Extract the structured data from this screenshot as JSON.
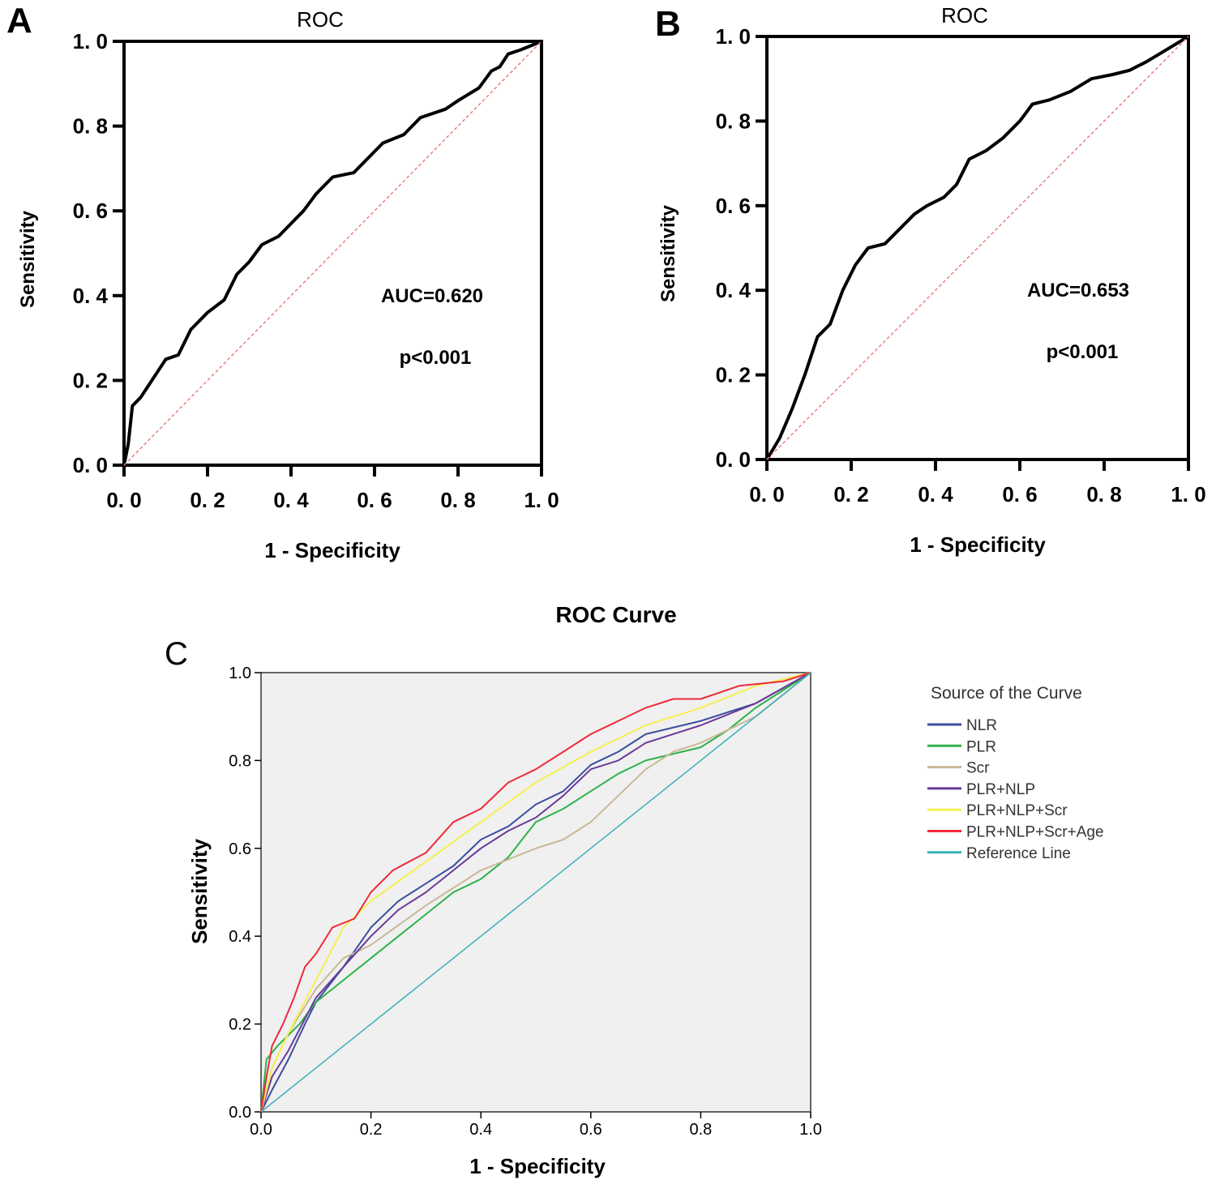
{
  "chart_data": [
    {
      "panel": "A",
      "type": "line",
      "title": "ROC",
      "xlabel": "1 - Specificity",
      "ylabel": "Sensitivity",
      "xlim": [
        0,
        1
      ],
      "ylim": [
        0,
        1
      ],
      "xticks": [
        "0. 0",
        "0. 2",
        "0. 4",
        "0. 6",
        "0. 8",
        "1. 0"
      ],
      "yticks": [
        "0. 0",
        "0. 2",
        "0. 4",
        "0. 6",
        "0. 8",
        "1. 0"
      ],
      "annotations": [
        "AUC=0.620",
        "p<0.001"
      ],
      "series": [
        {
          "name": "ROC",
          "color": "#000000",
          "points": [
            [
              0,
              0
            ],
            [
              0.01,
              0.05
            ],
            [
              0.02,
              0.14
            ],
            [
              0.04,
              0.16
            ],
            [
              0.06,
              0.19
            ],
            [
              0.1,
              0.25
            ],
            [
              0.13,
              0.26
            ],
            [
              0.16,
              0.32
            ],
            [
              0.2,
              0.36
            ],
            [
              0.24,
              0.39
            ],
            [
              0.27,
              0.45
            ],
            [
              0.3,
              0.48
            ],
            [
              0.33,
              0.52
            ],
            [
              0.37,
              0.54
            ],
            [
              0.4,
              0.57
            ],
            [
              0.43,
              0.6
            ],
            [
              0.46,
              0.64
            ],
            [
              0.5,
              0.68
            ],
            [
              0.55,
              0.69
            ],
            [
              0.6,
              0.74
            ],
            [
              0.62,
              0.76
            ],
            [
              0.67,
              0.78
            ],
            [
              0.71,
              0.82
            ],
            [
              0.77,
              0.84
            ],
            [
              0.8,
              0.86
            ],
            [
              0.85,
              0.89
            ],
            [
              0.88,
              0.93
            ],
            [
              0.9,
              0.94
            ],
            [
              0.92,
              0.97
            ],
            [
              0.95,
              0.98
            ],
            [
              1,
              1
            ]
          ]
        },
        {
          "name": "Reference",
          "color": "#e88080",
          "dashed": true,
          "points": [
            [
              0,
              0
            ],
            [
              1,
              1
            ]
          ]
        }
      ]
    },
    {
      "panel": "B",
      "type": "line",
      "title": "ROC",
      "xlabel": "1 - Specificity",
      "ylabel": "Sensitivity",
      "xlim": [
        0,
        1
      ],
      "ylim": [
        0,
        1
      ],
      "xticks": [
        "0. 0",
        "0. 2",
        "0. 4",
        "0. 6",
        "0. 8",
        "1. 0"
      ],
      "yticks": [
        "0. 0",
        "0. 2",
        "0. 4",
        "0. 6",
        "0. 8",
        "1. 0"
      ],
      "annotations": [
        "AUC=0.653",
        "p<0.001"
      ],
      "series": [
        {
          "name": "ROC",
          "color": "#000000",
          "points": [
            [
              0,
              0
            ],
            [
              0.03,
              0.05
            ],
            [
              0.06,
              0.12
            ],
            [
              0.09,
              0.2
            ],
            [
              0.12,
              0.29
            ],
            [
              0.15,
              0.32
            ],
            [
              0.18,
              0.4
            ],
            [
              0.21,
              0.46
            ],
            [
              0.24,
              0.5
            ],
            [
              0.28,
              0.51
            ],
            [
              0.31,
              0.54
            ],
            [
              0.35,
              0.58
            ],
            [
              0.38,
              0.6
            ],
            [
              0.42,
              0.62
            ],
            [
              0.45,
              0.65
            ],
            [
              0.48,
              0.71
            ],
            [
              0.52,
              0.73
            ],
            [
              0.56,
              0.76
            ],
            [
              0.6,
              0.8
            ],
            [
              0.63,
              0.84
            ],
            [
              0.67,
              0.85
            ],
            [
              0.72,
              0.87
            ],
            [
              0.77,
              0.9
            ],
            [
              0.82,
              0.91
            ],
            [
              0.86,
              0.92
            ],
            [
              0.9,
              0.94
            ],
            [
              0.95,
              0.97
            ],
            [
              1,
              1
            ]
          ]
        },
        {
          "name": "Reference",
          "color": "#e88080",
          "dashed": true,
          "points": [
            [
              0,
              0
            ],
            [
              1,
              1
            ]
          ]
        }
      ]
    },
    {
      "panel": "C",
      "type": "line",
      "title": "ROC Curve",
      "xlabel": "1 - Specificity",
      "ylabel": "Sensitivity",
      "xlim": [
        0,
        1
      ],
      "ylim": [
        0,
        1
      ],
      "xticks": [
        "0.0",
        "0.2",
        "0.4",
        "0.6",
        "0.8",
        "1.0"
      ],
      "yticks": [
        "0.0",
        "0.2",
        "0.4",
        "0.6",
        "0.8",
        "1.0"
      ],
      "legend_title": "Source of the Curve",
      "legend_position": "right",
      "series": [
        {
          "name": "NLR",
          "color": "#3a4ea0",
          "points": [
            [
              0,
              0
            ],
            [
              0.02,
              0.05
            ],
            [
              0.05,
              0.12
            ],
            [
              0.08,
              0.2
            ],
            [
              0.1,
              0.25
            ],
            [
              0.15,
              0.33
            ],
            [
              0.2,
              0.42
            ],
            [
              0.25,
              0.48
            ],
            [
              0.3,
              0.52
            ],
            [
              0.35,
              0.56
            ],
            [
              0.4,
              0.62
            ],
            [
              0.45,
              0.65
            ],
            [
              0.5,
              0.7
            ],
            [
              0.55,
              0.73
            ],
            [
              0.6,
              0.79
            ],
            [
              0.65,
              0.82
            ],
            [
              0.7,
              0.86
            ],
            [
              0.8,
              0.89
            ],
            [
              0.9,
              0.93
            ],
            [
              1,
              1
            ]
          ]
        },
        {
          "name": "PLR",
          "color": "#2db34a",
          "points": [
            [
              0,
              0
            ],
            [
              0.01,
              0.12
            ],
            [
              0.03,
              0.15
            ],
            [
              0.07,
              0.2
            ],
            [
              0.1,
              0.25
            ],
            [
              0.15,
              0.3
            ],
            [
              0.2,
              0.35
            ],
            [
              0.25,
              0.4
            ],
            [
              0.3,
              0.45
            ],
            [
              0.35,
              0.5
            ],
            [
              0.4,
              0.53
            ],
            [
              0.45,
              0.58
            ],
            [
              0.5,
              0.66
            ],
            [
              0.55,
              0.69
            ],
            [
              0.6,
              0.73
            ],
            [
              0.65,
              0.77
            ],
            [
              0.7,
              0.8
            ],
            [
              0.8,
              0.83
            ],
            [
              0.85,
              0.87
            ],
            [
              0.9,
              0.92
            ],
            [
              1,
              1
            ]
          ]
        },
        {
          "name": "Scr",
          "color": "#c8b896",
          "points": [
            [
              0,
              0
            ],
            [
              0.02,
              0.1
            ],
            [
              0.05,
              0.18
            ],
            [
              0.1,
              0.28
            ],
            [
              0.15,
              0.35
            ],
            [
              0.2,
              0.38
            ],
            [
              0.3,
              0.47
            ],
            [
              0.4,
              0.55
            ],
            [
              0.5,
              0.6
            ],
            [
              0.55,
              0.62
            ],
            [
              0.6,
              0.66
            ],
            [
              0.65,
              0.72
            ],
            [
              0.7,
              0.78
            ],
            [
              0.75,
              0.82
            ],
            [
              0.8,
              0.84
            ],
            [
              0.9,
              0.9
            ],
            [
              1,
              1
            ]
          ]
        },
        {
          "name": "PLR+NLP",
          "color": "#6a3a98",
          "points": [
            [
              0,
              0
            ],
            [
              0.02,
              0.08
            ],
            [
              0.05,
              0.14
            ],
            [
              0.1,
              0.26
            ],
            [
              0.15,
              0.33
            ],
            [
              0.2,
              0.4
            ],
            [
              0.25,
              0.46
            ],
            [
              0.3,
              0.5
            ],
            [
              0.35,
              0.55
            ],
            [
              0.4,
              0.6
            ],
            [
              0.45,
              0.64
            ],
            [
              0.5,
              0.67
            ],
            [
              0.55,
              0.72
            ],
            [
              0.6,
              0.78
            ],
            [
              0.65,
              0.8
            ],
            [
              0.7,
              0.84
            ],
            [
              0.8,
              0.88
            ],
            [
              0.9,
              0.93
            ],
            [
              1,
              1
            ]
          ]
        },
        {
          "name": "PLR+NLP+Scr",
          "color": "#f5f050",
          "points": [
            [
              0,
              0
            ],
            [
              0.02,
              0.1
            ],
            [
              0.05,
              0.18
            ],
            [
              0.1,
              0.3
            ],
            [
              0.15,
              0.42
            ],
            [
              0.2,
              0.48
            ],
            [
              0.3,
              0.57
            ],
            [
              0.4,
              0.66
            ],
            [
              0.5,
              0.75
            ],
            [
              0.6,
              0.82
            ],
            [
              0.7,
              0.88
            ],
            [
              0.8,
              0.92
            ],
            [
              0.9,
              0.97
            ],
            [
              1,
              1
            ]
          ]
        },
        {
          "name": "PLR+NLP+Scr+Age",
          "color": "#ee2a3a",
          "points": [
            [
              0,
              0
            ],
            [
              0.01,
              0.08
            ],
            [
              0.02,
              0.15
            ],
            [
              0.04,
              0.2
            ],
            [
              0.06,
              0.26
            ],
            [
              0.08,
              0.33
            ],
            [
              0.1,
              0.36
            ],
            [
              0.13,
              0.42
            ],
            [
              0.17,
              0.44
            ],
            [
              0.2,
              0.5
            ],
            [
              0.24,
              0.55
            ],
            [
              0.3,
              0.59
            ],
            [
              0.35,
              0.66
            ],
            [
              0.4,
              0.69
            ],
            [
              0.45,
              0.75
            ],
            [
              0.5,
              0.78
            ],
            [
              0.55,
              0.82
            ],
            [
              0.6,
              0.86
            ],
            [
              0.65,
              0.89
            ],
            [
              0.7,
              0.92
            ],
            [
              0.75,
              0.94
            ],
            [
              0.8,
              0.94
            ],
            [
              0.87,
              0.97
            ],
            [
              0.95,
              0.98
            ],
            [
              1,
              1
            ]
          ]
        },
        {
          "name": "Reference Line",
          "color": "#3ab0b8",
          "points": [
            [
              0,
              0
            ],
            [
              1,
              1
            ]
          ]
        }
      ]
    }
  ],
  "panel_labels": [
    "A",
    "B",
    "C"
  ]
}
